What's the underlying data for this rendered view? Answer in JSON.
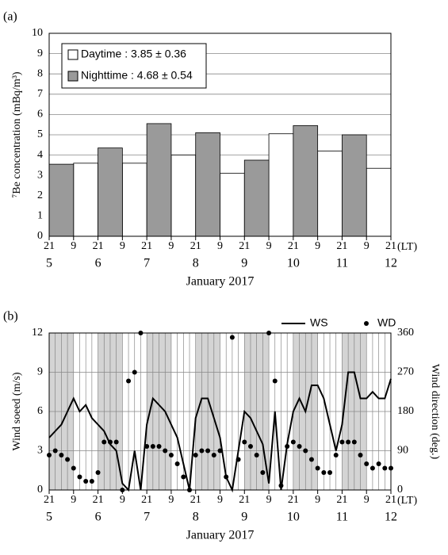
{
  "chart_data": [
    {
      "type": "bar",
      "panel_label": "(a)",
      "ylabel": "⁷Be concentration (mBq/m³)",
      "xlabel": "January 2017",
      "xunit": "(LT)",
      "xlim": [
        0,
        14
      ],
      "ylim": [
        0,
        10
      ],
      "yticks": [
        0,
        1,
        2,
        3,
        4,
        5,
        6,
        7,
        8,
        9,
        10
      ],
      "grid": true,
      "xticks": [
        {
          "value": 0,
          "label": "21"
        },
        {
          "value": 1,
          "label": "9"
        },
        {
          "value": 2,
          "label": "21"
        },
        {
          "value": 3,
          "label": "9"
        },
        {
          "value": 4,
          "label": "21"
        },
        {
          "value": 5,
          "label": "9"
        },
        {
          "value": 6,
          "label": "21"
        },
        {
          "value": 7,
          "label": "9"
        },
        {
          "value": 8,
          "label": "21"
        },
        {
          "value": 9,
          "label": "9"
        },
        {
          "value": 10,
          "label": "21"
        },
        {
          "value": 11,
          "label": "9"
        },
        {
          "value": 12,
          "label": "21"
        },
        {
          "value": 13,
          "label": "9"
        },
        {
          "value": 14,
          "label": "21"
        }
      ],
      "date_ticks": [
        {
          "value": 0,
          "label": "5"
        },
        {
          "value": 2,
          "label": "6"
        },
        {
          "value": 4,
          "label": "7"
        },
        {
          "value": 6,
          "label": "8"
        },
        {
          "value": 8,
          "label": "9"
        },
        {
          "value": 10,
          "label": "10"
        },
        {
          "value": 12,
          "label": "11"
        },
        {
          "value": 14,
          "label": "12"
        }
      ],
      "series": [
        {
          "name": "Daytime : 3.85 ± 0.36",
          "color": "#ffffff",
          "values": [
            null,
            3.6,
            null,
            3.6,
            null,
            4.0,
            null,
            3.1,
            null,
            5.05,
            null,
            4.2,
            null,
            3.35
          ]
        },
        {
          "name": "Nighttime : 4.68 ± 0.54",
          "color": "#9a9a9a",
          "values": [
            3.55,
            null,
            4.35,
            null,
            5.55,
            null,
            5.1,
            null,
            3.75,
            null,
            5.45,
            null,
            5.0,
            null
          ]
        }
      ]
    },
    {
      "type": "line",
      "panel_label": "(b)",
      "ylabel": "Wind soeed (m/s)",
      "y2label": "Wind direction (deg.)",
      "xlabel": "January 2017",
      "xunit": "(LT)",
      "xlim": [
        0,
        168
      ],
      "ylim": [
        0,
        12
      ],
      "yticks": [
        0,
        3,
        6,
        9,
        12
      ],
      "y2lim": [
        0,
        360
      ],
      "y2ticks": [
        0,
        90,
        180,
        270,
        360
      ],
      "grid": true,
      "minor_step": 3,
      "xticks": [
        {
          "value": 0,
          "label": "21"
        },
        {
          "value": 12,
          "label": "9"
        },
        {
          "value": 24,
          "label": "21"
        },
        {
          "value": 36,
          "label": "9"
        },
        {
          "value": 48,
          "label": "21"
        },
        {
          "value": 60,
          "label": "9"
        },
        {
          "value": 72,
          "label": "21"
        },
        {
          "value": 84,
          "label": "9"
        },
        {
          "value": 96,
          "label": "21"
        },
        {
          "value": 108,
          "label": "9"
        },
        {
          "value": 120,
          "label": "21"
        },
        {
          "value": 132,
          "label": "9"
        },
        {
          "value": 144,
          "label": "21"
        },
        {
          "value": 156,
          "label": "9"
        },
        {
          "value": 168,
          "label": "21"
        }
      ],
      "date_ticks": [
        {
          "value": 0,
          "label": "5"
        },
        {
          "value": 24,
          "label": "6"
        },
        {
          "value": 48,
          "label": "7"
        },
        {
          "value": 72,
          "label": "8"
        },
        {
          "value": 96,
          "label": "9"
        },
        {
          "value": 120,
          "label": "10"
        },
        {
          "value": 144,
          "label": "11"
        },
        {
          "value": 168,
          "label": "12"
        }
      ],
      "x": [
        0,
        3,
        6,
        9,
        12,
        15,
        18,
        21,
        24,
        27,
        30,
        33,
        36,
        39,
        42,
        45,
        48,
        51,
        54,
        57,
        60,
        63,
        66,
        69,
        72,
        75,
        78,
        81,
        84,
        87,
        90,
        93,
        96,
        99,
        102,
        105,
        108,
        111,
        114,
        117,
        120,
        123,
        126,
        129,
        132,
        135,
        138,
        141,
        144,
        147,
        150,
        153,
        156,
        159,
        162,
        165,
        168
      ],
      "series": [
        {
          "name": "WS",
          "color": "#000000",
          "values": [
            4,
            4.5,
            5,
            6,
            7,
            6,
            6.5,
            5.5,
            5,
            4.5,
            3.5,
            3,
            0.5,
            0,
            3,
            0,
            5,
            7,
            6.5,
            6,
            5,
            4,
            2,
            0,
            5.5,
            7,
            7,
            5.5,
            4,
            1,
            0,
            3,
            6,
            5.5,
            4.5,
            3.5,
            0.5,
            6,
            0,
            3.5,
            6,
            7,
            6,
            8,
            8,
            7,
            5,
            3,
            5,
            9,
            9,
            7,
            7,
            7.5,
            7,
            7,
            8.5
          ]
        },
        {
          "name": "WD",
          "type": "scatter",
          "axis": "y2",
          "color": "#000000",
          "values": [
            80,
            90,
            80,
            70,
            50,
            30,
            20,
            20,
            40,
            110,
            110,
            110,
            0,
            250,
            270,
            360,
            100,
            100,
            100,
            90,
            80,
            60,
            30,
            0,
            80,
            90,
            90,
            80,
            90,
            30,
            350,
            70,
            110,
            100,
            80,
            40,
            360,
            250,
            10,
            100,
            110,
            100,
            90,
            70,
            50,
            40,
            40,
            80,
            110,
            110,
            110,
            80,
            60,
            50,
            60,
            50,
            50
          ]
        }
      ]
    }
  ]
}
